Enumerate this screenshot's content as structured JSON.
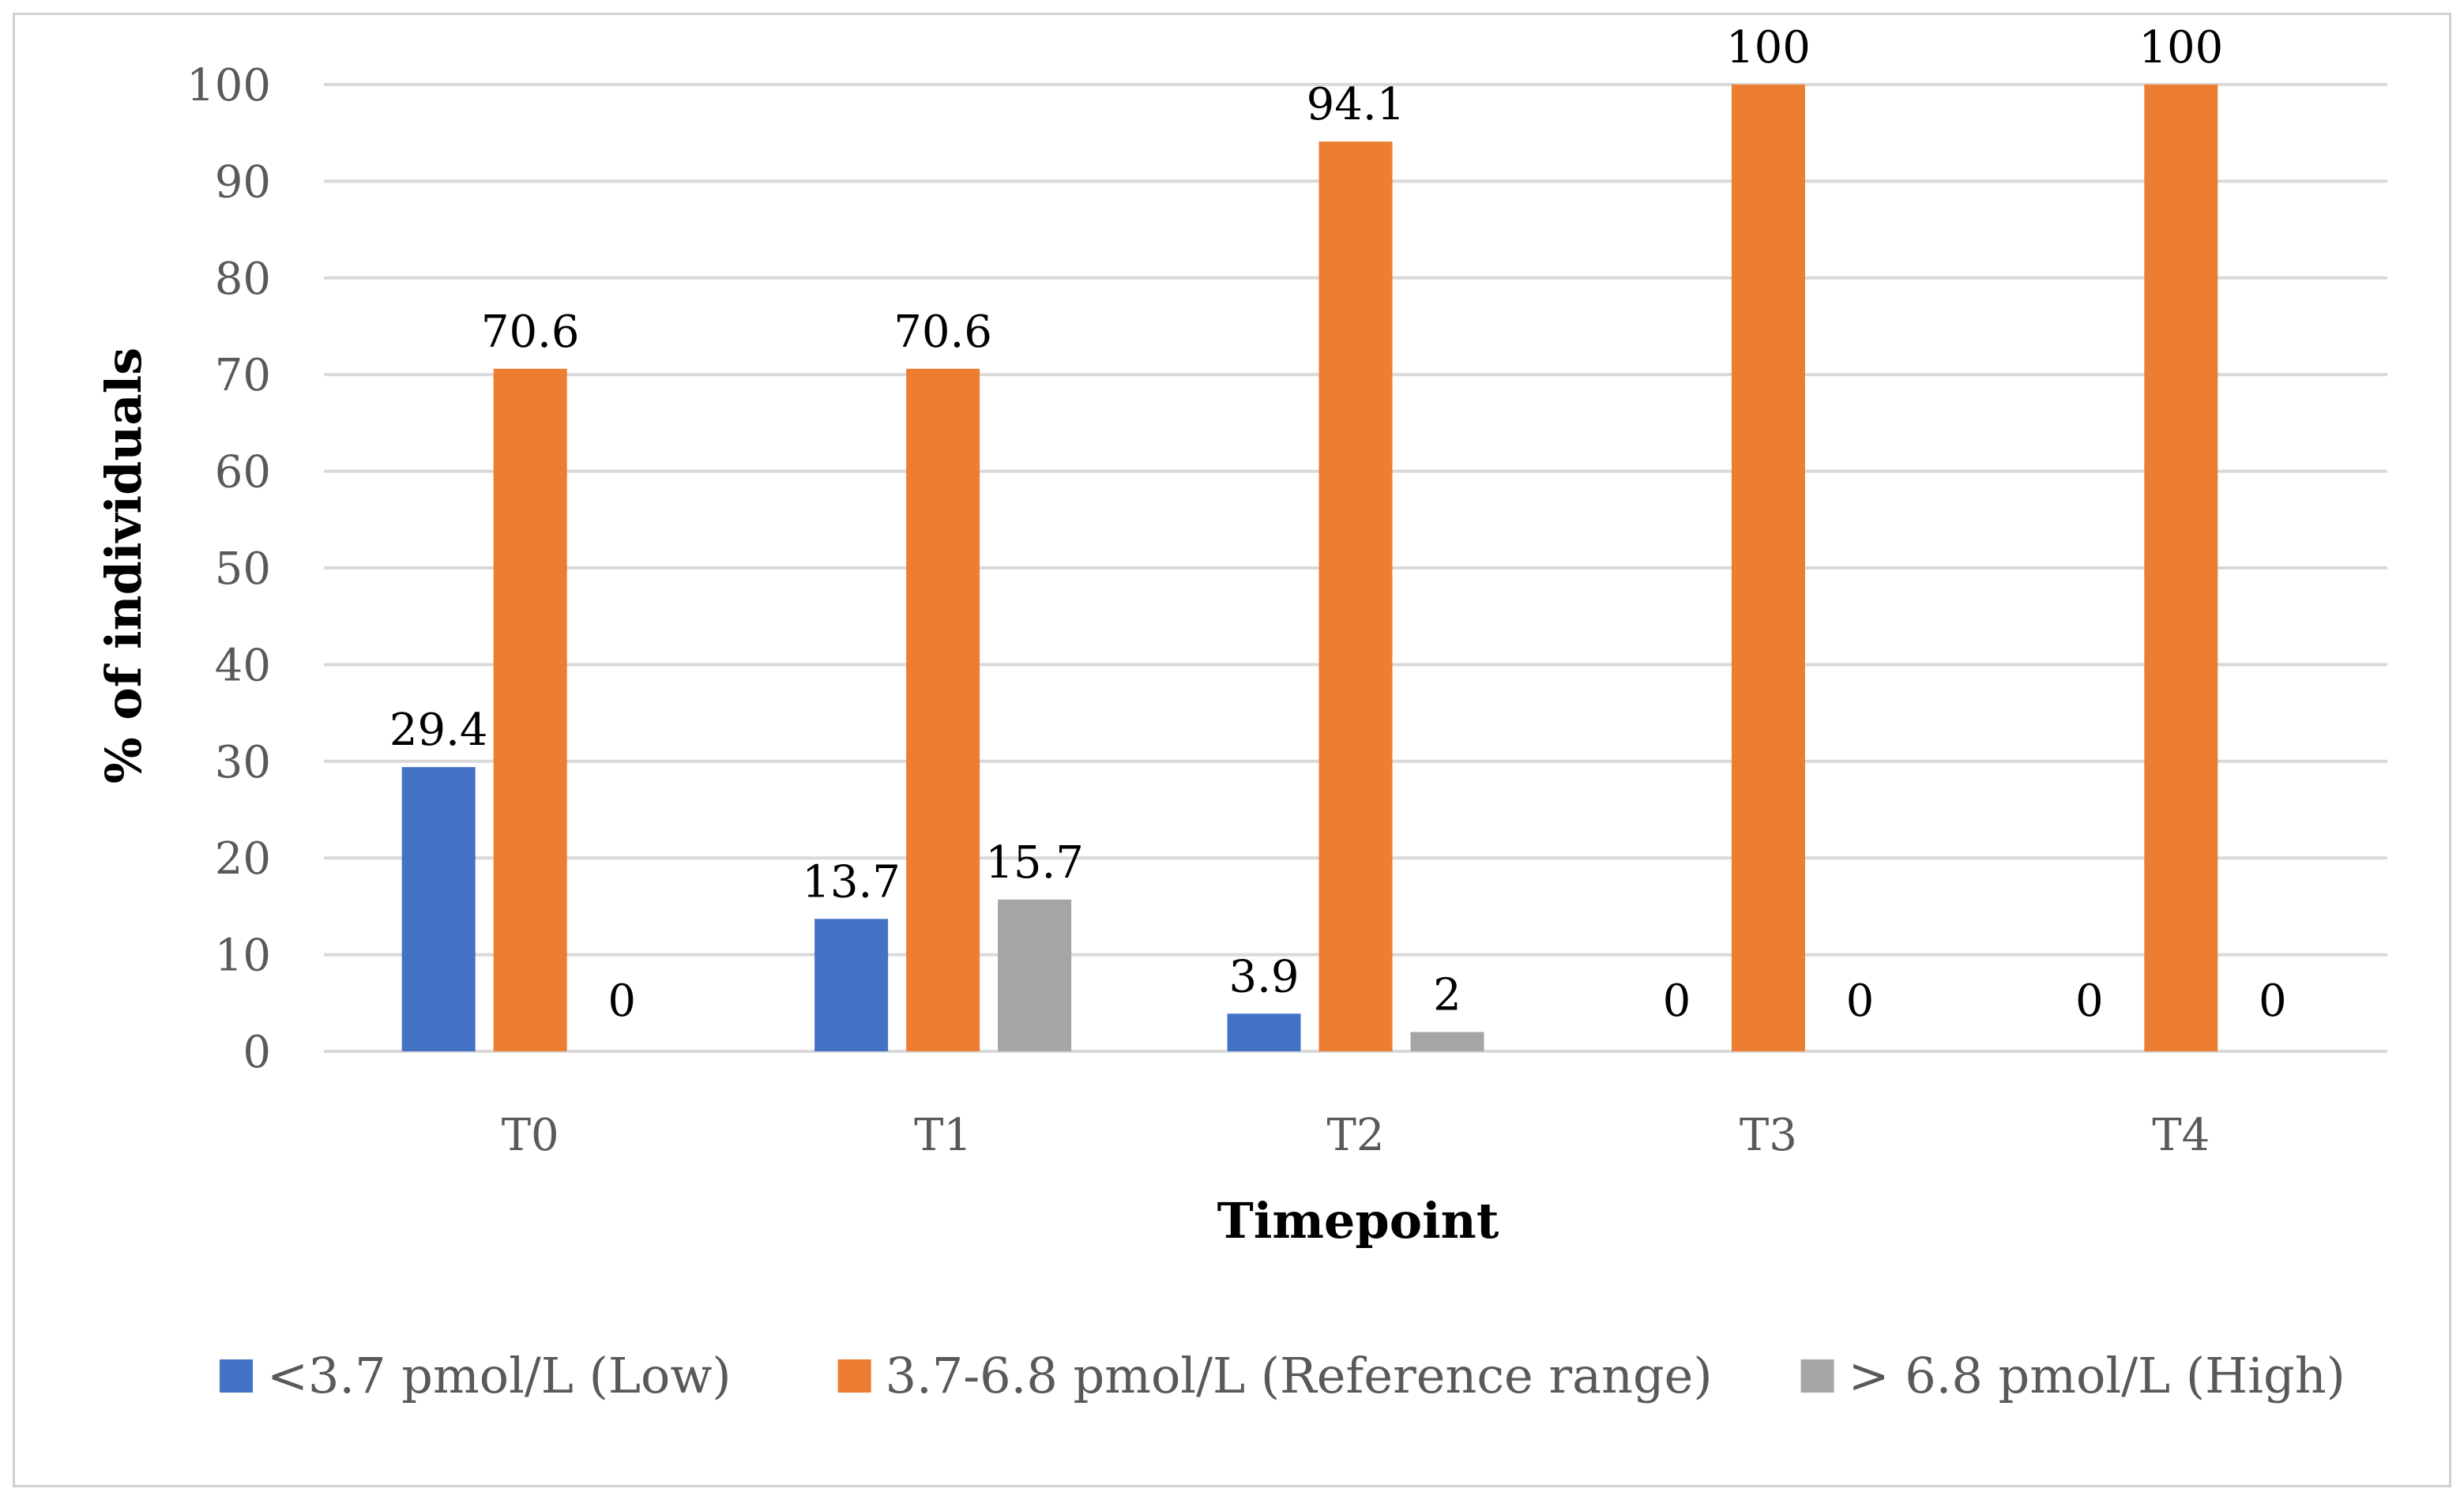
{
  "chart_data": {
    "type": "bar",
    "title": "",
    "xlabel": "Timepoint",
    "ylabel": "% of individuals",
    "categories": [
      "T0",
      "T1",
      "T2",
      "T3",
      "T4"
    ],
    "ylim": [
      0,
      100
    ],
    "yticks": [
      0,
      10,
      20,
      30,
      40,
      50,
      60,
      70,
      80,
      90,
      100
    ],
    "grid": true,
    "legend_position": "bottom",
    "series": [
      {
        "name": "<3.7 pmol/L (Low)",
        "color": "#4472C4",
        "values": [
          29.4,
          13.7,
          3.9,
          0,
          0
        ]
      },
      {
        "name": "3.7-6.8 pmol/L (Reference range)",
        "color": "#ED7D31",
        "values": [
          70.6,
          70.6,
          94.1,
          100,
          100
        ]
      },
      {
        "name": "> 6.8 pmol/L (High)",
        "color": "#A5A5A5",
        "values": [
          0,
          15.7,
          2,
          0,
          0
        ]
      }
    ]
  }
}
